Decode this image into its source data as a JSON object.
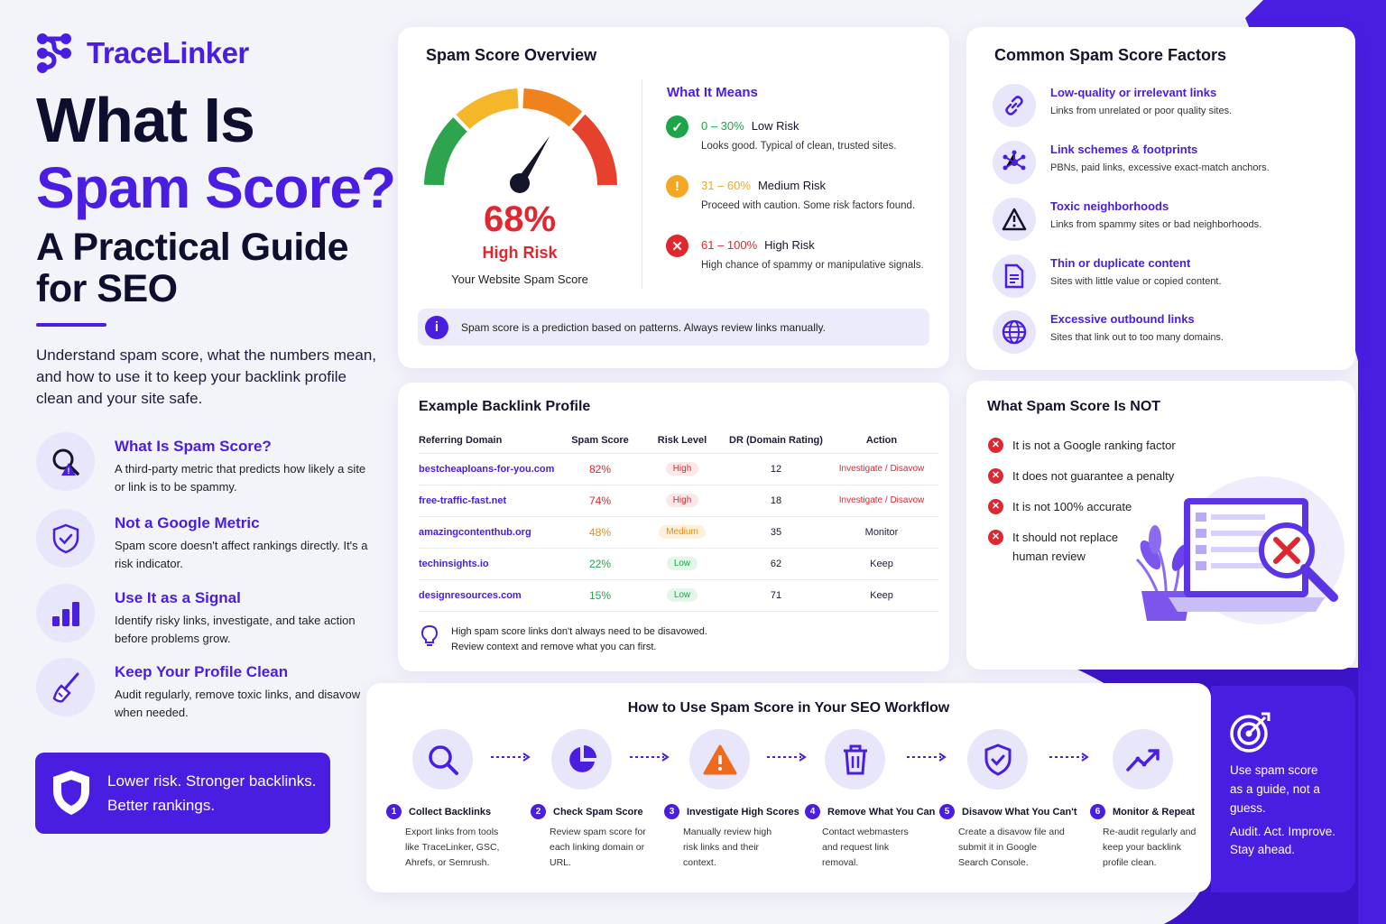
{
  "brand": {
    "name": "TraceLinker",
    "accent": "#4a1ee0"
  },
  "hero": {
    "line1": "What Is",
    "line2": "Spam Score?",
    "line3": "A Practical Guide",
    "line4": "for SEO",
    "intro": "Understand spam score, what the numbers mean, and how to use it to keep your backlink profile clean and your site safe."
  },
  "features": [
    {
      "title": "What Is Spam Score?",
      "desc": "A third-party metric that predicts how likely a site or link is to be spammy.",
      "icon": "search-warning-icon"
    },
    {
      "title": "Not a Google Metric",
      "desc": "Spam score doesn't affect rankings directly. It's a risk indicator.",
      "icon": "shield-check-icon"
    },
    {
      "title": "Use It as a Signal",
      "desc": "Identify risky links, investigate, and take action before problems grow.",
      "icon": "bar-chart-icon"
    },
    {
      "title": "Keep Your Profile Clean",
      "desc": "Audit regularly, remove toxic links, and disavow when needed.",
      "icon": "broom-icon"
    }
  ],
  "cta": {
    "line1": "Lower risk. Stronger backlinks.",
    "line2": "Better rankings."
  },
  "overview": {
    "title": "Spam Score Overview",
    "score": "68%",
    "score_value": 68,
    "risk_label": "High Risk",
    "caption": "Your Website Spam Score",
    "means_title": "What It Means",
    "levels": [
      {
        "range": "0 – 30%",
        "label": "Low Risk",
        "desc": "Looks good. Typical of clean, trusted sites.",
        "color": "#1ea54a"
      },
      {
        "range": "31 – 60%",
        "label": "Medium Risk",
        "desc": "Proceed with caution. Some risk factors found.",
        "color": "#f5a623"
      },
      {
        "range": "61 – 100%",
        "label": "High Risk",
        "desc": "High chance of spammy or manipulative signals.",
        "color": "#e0262e"
      }
    ],
    "note": "Spam score is a prediction based on patterns. Always review links manually."
  },
  "factors": {
    "title": "Common Spam Score Factors",
    "items": [
      {
        "title": "Low-quality or irrelevant links",
        "desc": "Links from unrelated or poor quality sites.",
        "icon": "link-icon"
      },
      {
        "title": "Link schemes & footprints",
        "desc": "PBNs, paid links, excessive exact-match anchors.",
        "icon": "network-icon"
      },
      {
        "title": "Toxic neighborhoods",
        "desc": "Links from spammy sites or bad neighborhoods.",
        "icon": "warning-icon"
      },
      {
        "title": "Thin or duplicate content",
        "desc": "Sites with little value or copied content.",
        "icon": "document-icon"
      },
      {
        "title": "Excessive outbound links",
        "desc": "Sites that link out to too many domains.",
        "icon": "globe-icon"
      }
    ]
  },
  "backlinks": {
    "title": "Example Backlink Profile",
    "headers": [
      "Referring Domain",
      "Spam Score",
      "Risk Level",
      "DR (Domain Rating)",
      "Action"
    ],
    "rows": [
      {
        "domain": "bestcheaploans-for-you.com",
        "score": "82%",
        "risk": "High",
        "dr": "12",
        "action": "Investigate / Disavow",
        "color": "#e0262e",
        "bg": "#fde7e7"
      },
      {
        "domain": "free-traffic-fast.net",
        "score": "74%",
        "risk": "High",
        "dr": "18",
        "action": "Investigate / Disavow",
        "color": "#e0262e",
        "bg": "#fde7e7"
      },
      {
        "domain": "amazingcontenthub.org",
        "score": "48%",
        "risk": "Medium",
        "dr": "35",
        "action": "Monitor",
        "color": "#f08c00",
        "bg": "#fff0dc"
      },
      {
        "domain": "techinsights.io",
        "score": "22%",
        "risk": "Low",
        "dr": "62",
        "action": "Keep",
        "color": "#1ea54a",
        "bg": "#e3f6e8"
      },
      {
        "domain": "designresources.com",
        "score": "15%",
        "risk": "Low",
        "dr": "71",
        "action": "Keep",
        "color": "#1ea54a",
        "bg": "#e3f6e8"
      }
    ],
    "tip_line1": "High spam score links don't always need to be disavowed.",
    "tip_line2": "Review context and remove what you can first."
  },
  "not": {
    "title": "What Spam Score Is NOT",
    "items": [
      "It is not a Google ranking factor",
      "It does not guarantee a penalty",
      "It is not 100% accurate",
      "It should not replace human review"
    ]
  },
  "workflow": {
    "title": "How to Use Spam Score in Your SEO Workflow",
    "steps": [
      {
        "num": "1",
        "title": "Collect Backlinks",
        "desc": "Export links from tools like TraceLinker, GSC, Ahrefs, or Semrush.",
        "icon": "search-icon"
      },
      {
        "num": "2",
        "title": "Check Spam Score",
        "desc": "Review spam score for each linking domain or URL.",
        "icon": "pie-chart-icon"
      },
      {
        "num": "3",
        "title": "Investigate High Scores",
        "desc": "Manually review high risk links and their context.",
        "icon": "alert-icon"
      },
      {
        "num": "4",
        "title": "Remove What You Can",
        "desc": "Contact webmasters and request link removal.",
        "icon": "trash-icon"
      },
      {
        "num": "5",
        "title": "Disavow What You Can't",
        "desc": "Create a disavow file and submit it in Google Search Console.",
        "icon": "shield-icon"
      },
      {
        "num": "6",
        "title": "Monitor & Repeat",
        "desc": "Re-audit regularly and keep your backlink profile clean.",
        "icon": "trend-up-icon"
      }
    ]
  },
  "side_cta": {
    "line1": "Use spam score as a guide, not a guess.",
    "line2": "Audit. Act. Improve. Stay ahead."
  }
}
